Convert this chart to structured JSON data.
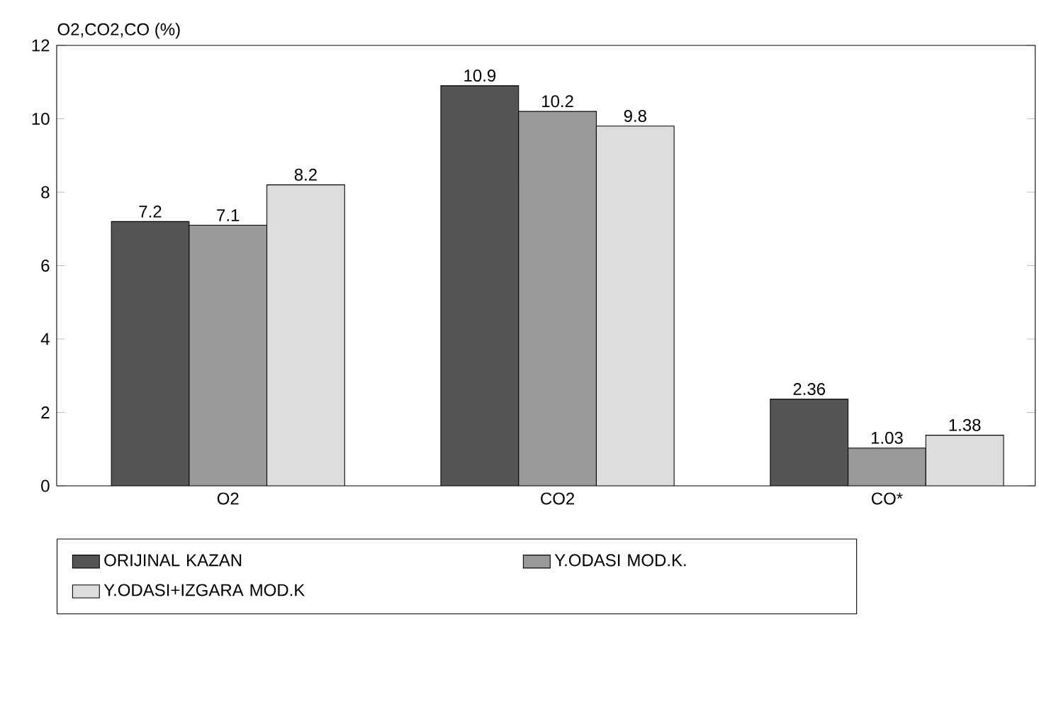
{
  "chart_data": {
    "type": "bar",
    "ylabel": "O2,CO2,CO (%)",
    "categories": [
      "O2",
      "CO2",
      "CO*"
    ],
    "series": [
      {
        "name": "ORIJINAL KAZAN",
        "color": "#555555",
        "values": [
          7.2,
          10.9,
          2.36
        ]
      },
      {
        "name": "Y.ODASI MOD.K.",
        "color": "#999999",
        "values": [
          7.1,
          10.2,
          1.03
        ]
      },
      {
        "name": "Y.ODASI+IZGARA MOD.K",
        "color": "#dddddd",
        "values": [
          8.2,
          9.8,
          1.38
        ]
      }
    ],
    "ylim": [
      0,
      12
    ],
    "yticks": [
      0,
      2,
      4,
      6,
      8,
      10,
      12
    ],
    "data_labels": true,
    "legend": "bottom"
  }
}
